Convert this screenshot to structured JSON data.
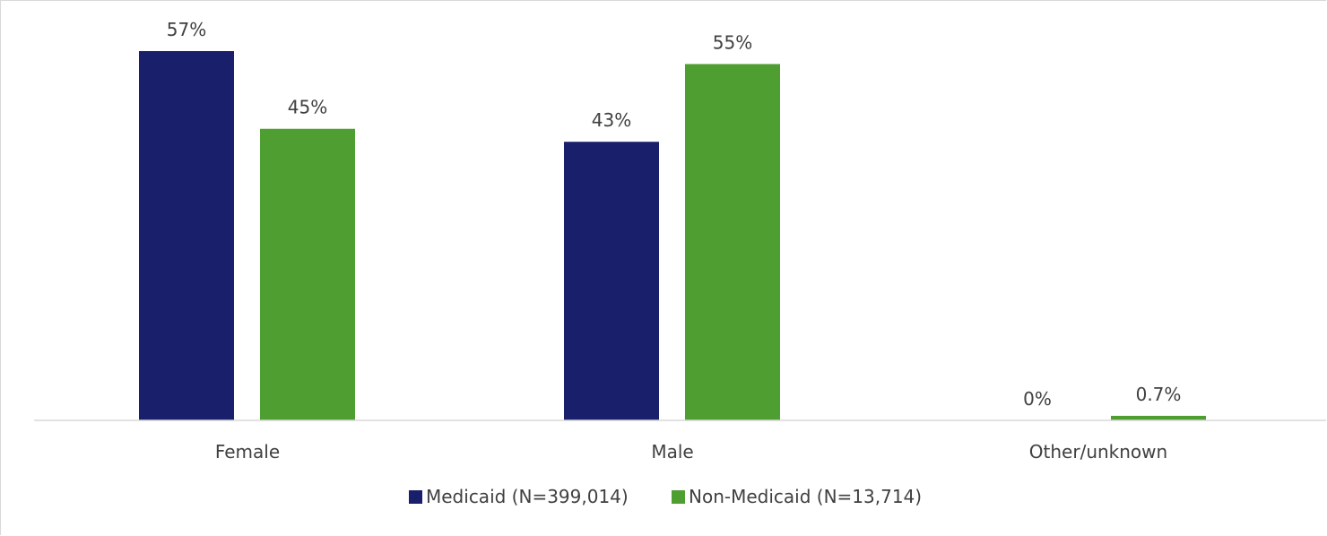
{
  "chart_data": {
    "type": "bar",
    "categories": [
      "Female",
      "Male",
      "Other/unknown"
    ],
    "series": [
      {
        "name": "Medicaid (N=399,014)",
        "values": [
          57,
          43,
          0
        ],
        "labels": [
          "57%",
          "43%",
          "0%"
        ],
        "color": "#1a1f6b"
      },
      {
        "name": "Non-Medicaid (N=13,714)",
        "values": [
          45,
          55,
          0.7
        ],
        "labels": [
          "45%",
          "55%",
          "0.7%"
        ],
        "color": "#4e9e31"
      }
    ],
    "ylim": [
      0,
      57
    ],
    "grid": false,
    "legend_position": "bottom"
  }
}
